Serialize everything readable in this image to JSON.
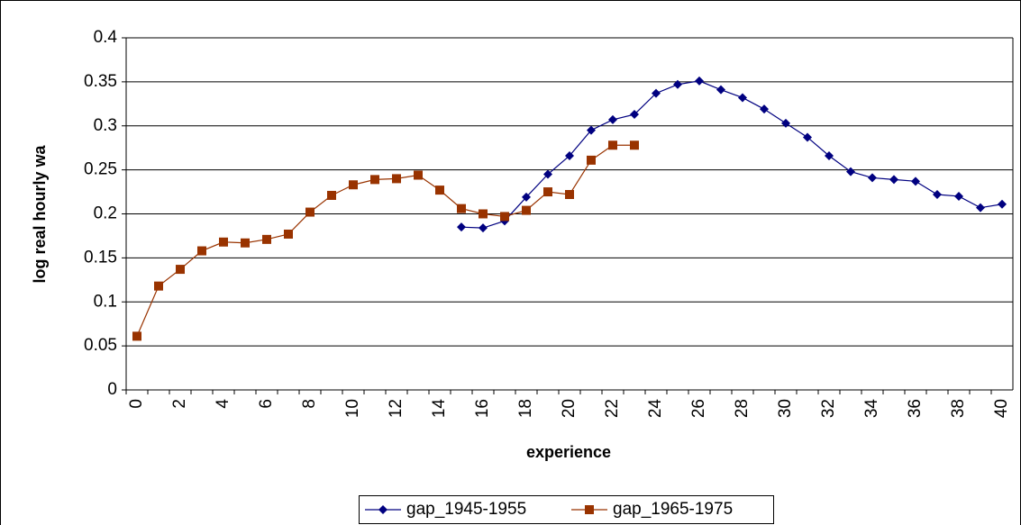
{
  "chart_data": {
    "type": "line",
    "y_label": "log real hourly wa",
    "x_label": "experience",
    "categories": [
      "0",
      null,
      "2",
      null,
      "4",
      null,
      "6",
      null,
      "8",
      null,
      "10",
      null,
      "12",
      null,
      "14",
      null,
      "16",
      null,
      "18",
      null,
      "20",
      null,
      "22",
      null,
      "24",
      null,
      "26",
      null,
      "28",
      null,
      "30",
      null,
      "32",
      null,
      "34",
      null,
      "36",
      null,
      "38",
      null,
      "40"
    ],
    "series": [
      {
        "name": "gap_1945-1955",
        "color": "#000080",
        "marker": "diamond",
        "values": [
          null,
          null,
          null,
          null,
          null,
          null,
          null,
          null,
          null,
          null,
          null,
          null,
          null,
          null,
          null,
          0.185,
          0.184,
          0.192,
          0.219,
          0.245,
          0.266,
          0.295,
          0.307,
          0.313,
          0.337,
          0.347,
          0.351,
          0.341,
          0.332,
          0.319,
          0.303,
          0.287,
          0.266,
          0.248,
          0.241,
          0.239,
          0.237,
          0.222,
          0.22,
          0.207,
          0.211
        ]
      },
      {
        "name": "gap_1965-1975",
        "color": "#993300",
        "marker": "square",
        "values": [
          0.061,
          0.118,
          0.137,
          0.158,
          0.168,
          0.167,
          0.171,
          0.177,
          0.202,
          0.221,
          0.233,
          0.239,
          0.24,
          0.244,
          0.227,
          0.206,
          0.2,
          0.197,
          0.204,
          0.225,
          0.222,
          0.261,
          0.278,
          0.278,
          null,
          null,
          null,
          null,
          null,
          null,
          null,
          null,
          null,
          null,
          null,
          null,
          null,
          null,
          null,
          null,
          null
        ]
      }
    ],
    "ylim": [
      0,
      0.4
    ],
    "yticks": [
      0,
      0.05,
      0.1,
      0.15,
      0.2,
      0.25,
      0.3,
      0.35,
      0.4
    ],
    "grid": true,
    "legend": "bottom"
  }
}
